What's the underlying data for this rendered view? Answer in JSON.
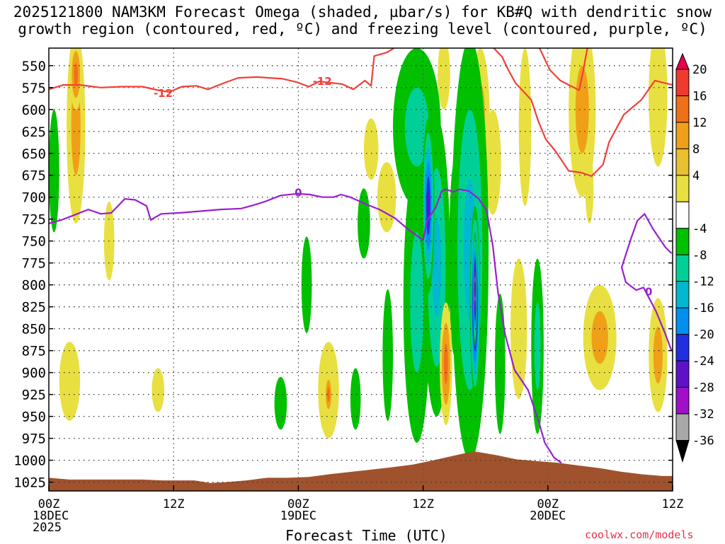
{
  "title": {
    "line1": "2025121800 NAM3KM Forecast Omega (shaded, µbar/s) for KB#Q with dendritic snow",
    "line2": "growth region (contoured, red, ºC) and freezing level (contoured, purple, ºC)"
  },
  "xlabel": "Forecast Time (UTC)",
  "credit": "coolwx.com/models",
  "colors": {
    "temp_contour": "#f04038",
    "freezing_contour": "#9a1fd0",
    "terrain": "#a0522d",
    "grid": "#666666"
  },
  "chart_data": {
    "type": "heatmap",
    "x_unit": "forecast hours from 2025-12-18 00Z",
    "xlim": [
      0,
      60
    ],
    "ylim": [
      1035,
      530
    ],
    "y_ticks": [
      550,
      575,
      600,
      625,
      650,
      675,
      700,
      725,
      750,
      775,
      800,
      825,
      850,
      875,
      900,
      925,
      950,
      975,
      1000,
      1025
    ],
    "x_ticks": [
      {
        "h": 0,
        "labels": [
          "00Z",
          "18DEC",
          "2025"
        ]
      },
      {
        "h": 12,
        "labels": [
          "12Z"
        ]
      },
      {
        "h": 24,
        "labels": [
          "00Z",
          "19DEC"
        ]
      },
      {
        "h": 36,
        "labels": [
          "12Z"
        ]
      },
      {
        "h": 48,
        "labels": [
          "00Z",
          "20DEC"
        ]
      },
      {
        "h": 60,
        "labels": [
          "12Z"
        ]
      }
    ],
    "colorbar": {
      "labels": [
        20,
        16,
        12,
        8,
        4,
        -4,
        -8,
        -12,
        -16,
        -20,
        -24,
        -28,
        -32,
        -36
      ],
      "colors": [
        "#e8004a",
        "#f03a30",
        "#f07018",
        "#f0a018",
        "#e8c030",
        "#e8e040",
        "#ffffff",
        "#00c000",
        "#00d098",
        "#00b8d0",
        "#0090f0",
        "#2030e0",
        "#6010c8",
        "#a010c8",
        "#a8a8a8",
        "#000000"
      ]
    },
    "omega_blobs": [
      {
        "h": 2.6,
        "p": 620,
        "dh": 0.9,
        "dp": 110,
        "v": 8
      },
      {
        "h": 2.6,
        "p": 560,
        "dh": 0.6,
        "dp": 40,
        "v": 12
      },
      {
        "h": 2.0,
        "p": 910,
        "dh": 1.0,
        "dp": 45,
        "v": 6
      },
      {
        "h": 5.8,
        "p": 750,
        "dh": 0.5,
        "dp": 45,
        "v": 5
      },
      {
        "h": 10.5,
        "p": 920,
        "dh": 0.6,
        "dp": 25,
        "v": 5
      },
      {
        "h": 0.5,
        "p": 670,
        "dh": 0.5,
        "dp": 70,
        "v": -7
      },
      {
        "h": 22.3,
        "p": 935,
        "dh": 0.6,
        "dp": 30,
        "v": -6
      },
      {
        "h": 24.8,
        "p": 800,
        "dh": 0.5,
        "dp": 55,
        "v": -6
      },
      {
        "h": 26.9,
        "p": 920,
        "dh": 1.0,
        "dp": 55,
        "v": 7
      },
      {
        "h": 26.9,
        "p": 925,
        "dh": 0.4,
        "dp": 25,
        "v": 14
      },
      {
        "h": 29.5,
        "p": 930,
        "dh": 0.5,
        "dp": 35,
        "v": -6
      },
      {
        "h": 30.3,
        "p": 730,
        "dh": 0.6,
        "dp": 40,
        "v": -6
      },
      {
        "h": 31.0,
        "p": 645,
        "dh": 0.7,
        "dp": 35,
        "v": 6
      },
      {
        "h": 32.6,
        "p": 880,
        "dh": 0.5,
        "dp": 75,
        "v": -7
      },
      {
        "h": 32.5,
        "p": 700,
        "dh": 0.9,
        "dp": 40,
        "v": 6
      },
      {
        "h": 35.4,
        "p": 620,
        "dh": 2.3,
        "dp": 90,
        "v": -10
      },
      {
        "h": 35.4,
        "p": 820,
        "dh": 1.3,
        "dp": 160,
        "v": -8
      },
      {
        "h": 36.5,
        "p": 710,
        "dh": 0.6,
        "dp": 100,
        "v": -26
      },
      {
        "h": 37.3,
        "p": 780,
        "dh": 1.3,
        "dp": 170,
        "v": -12
      },
      {
        "h": 38.2,
        "p": 890,
        "dh": 0.6,
        "dp": 70,
        "v": 14
      },
      {
        "h": 38.0,
        "p": 560,
        "dh": 0.6,
        "dp": 40,
        "v": 6
      },
      {
        "h": 39.0,
        "p": 770,
        "dh": 0.5,
        "dp": 110,
        "v": -8
      },
      {
        "h": 40.5,
        "p": 760,
        "dh": 1.8,
        "dp": 240,
        "v": -14
      },
      {
        "h": 41.0,
        "p": 820,
        "dh": 0.5,
        "dp": 110,
        "v": -32
      },
      {
        "h": 41.0,
        "p": 805,
        "dh": 0.2,
        "dp": 65,
        "v": -40
      },
      {
        "h": 41.5,
        "p": 610,
        "dh": 0.9,
        "dp": 80,
        "v": 9
      },
      {
        "h": 42.7,
        "p": 660,
        "dh": 0.8,
        "dp": 60,
        "v": 6
      },
      {
        "h": 43.4,
        "p": 890,
        "dh": 0.5,
        "dp": 80,
        "v": -6
      },
      {
        "h": 45.8,
        "p": 620,
        "dh": 0.6,
        "dp": 90,
        "v": 7
      },
      {
        "h": 45.2,
        "p": 850,
        "dh": 0.8,
        "dp": 80,
        "v": 6
      },
      {
        "h": 47.0,
        "p": 870,
        "dh": 0.6,
        "dp": 100,
        "v": -10
      },
      {
        "h": 51.3,
        "p": 600,
        "dh": 1.3,
        "dp": 100,
        "v": 9
      },
      {
        "h": 52.0,
        "p": 690,
        "dh": 0.4,
        "dp": 40,
        "v": 5
      },
      {
        "h": 53.0,
        "p": 860,
        "dh": 1.6,
        "dp": 60,
        "v": 10
      },
      {
        "h": 58.6,
        "p": 880,
        "dh": 0.9,
        "dp": 65,
        "v": 8
      },
      {
        "h": 58.6,
        "p": 585,
        "dh": 0.9,
        "dp": 80,
        "v": 6
      }
    ],
    "temp_minus12": {
      "label": "-12",
      "labels_at": [
        [
          11.0,
          581
        ],
        [
          26.3,
          567
        ]
      ],
      "segments": [
        [
          [
            0,
            577
          ],
          [
            1.4,
            572
          ],
          [
            3,
            572
          ],
          [
            5,
            575
          ],
          [
            7,
            574
          ],
          [
            9,
            574
          ],
          [
            10.5,
            578
          ],
          [
            11.6,
            580
          ],
          [
            12.8,
            574
          ],
          [
            14.2,
            573
          ],
          [
            15.3,
            577
          ],
          [
            16.8,
            570
          ],
          [
            18.2,
            564
          ],
          [
            20.0,
            563
          ],
          [
            22.5,
            565
          ],
          [
            23.9,
            569
          ],
          [
            25.0,
            574
          ],
          [
            26.0,
            568
          ],
          [
            28.2,
            571
          ],
          [
            29.3,
            577
          ],
          [
            30.4,
            567
          ],
          [
            31.0,
            573
          ],
          [
            31.3,
            539
          ],
          [
            32.5,
            535
          ],
          [
            33.2,
            530
          ]
        ],
        [
          [
            42.8,
            530
          ],
          [
            43.6,
            540
          ],
          [
            44.2,
            555
          ],
          [
            44.9,
            570
          ],
          [
            46.4,
            589
          ],
          [
            47.1,
            614
          ],
          [
            47.8,
            634
          ],
          [
            48.7,
            647
          ],
          [
            50.0,
            670
          ],
          [
            51.2,
            672
          ],
          [
            52.2,
            676
          ],
          [
            53.3,
            663
          ],
          [
            53.9,
            637
          ],
          [
            55.3,
            606
          ],
          [
            57.0,
            589
          ],
          [
            58.3,
            567
          ],
          [
            60,
            572
          ]
        ],
        [
          [
            47.2,
            530
          ],
          [
            48.2,
            555
          ],
          [
            49.2,
            567
          ],
          [
            51.0,
            578
          ],
          [
            51.4,
            556
          ],
          [
            51.8,
            530
          ]
        ]
      ]
    },
    "freezing_0": {
      "label": "0",
      "labels_at": [
        [
          24.0,
          694
        ],
        [
          57.7,
          807
        ]
      ],
      "segments": [
        [
          [
            0,
            730
          ],
          [
            1.2,
            726
          ],
          [
            2.3,
            721
          ],
          [
            3.8,
            714
          ],
          [
            5.0,
            719
          ],
          [
            6.0,
            718
          ],
          [
            7.3,
            702
          ],
          [
            8.3,
            703
          ],
          [
            9.4,
            710
          ],
          [
            9.8,
            726
          ],
          [
            10.8,
            719
          ],
          [
            12.5,
            718
          ],
          [
            14.5,
            716
          ],
          [
            16.5,
            714
          ],
          [
            18.5,
            713
          ],
          [
            19.7,
            709
          ],
          [
            20.8,
            705
          ],
          [
            22.3,
            698
          ],
          [
            23.9,
            696
          ],
          [
            25.1,
            697
          ],
          [
            26.3,
            700
          ],
          [
            27.4,
            700
          ],
          [
            28.1,
            697
          ],
          [
            29.0,
            700
          ],
          [
            30.5,
            708
          ],
          [
            31.8,
            714
          ],
          [
            33.3,
            724
          ],
          [
            34.7,
            738
          ],
          [
            36.0,
            749
          ],
          [
            36.4,
            726
          ],
          [
            37.2,
            712
          ],
          [
            37.8,
            693
          ],
          [
            38.2,
            691
          ],
          [
            38.9,
            694
          ],
          [
            39.5,
            691
          ],
          [
            40.4,
            693
          ],
          [
            41.3,
            701
          ],
          [
            42.1,
            715
          ],
          [
            42.7,
            755
          ],
          [
            43.2,
            808
          ],
          [
            43.9,
            857
          ],
          [
            44.8,
            897
          ],
          [
            46.1,
            920
          ],
          [
            47.1,
            955
          ],
          [
            47.7,
            980
          ],
          [
            48.6,
            997
          ],
          [
            49.3,
            1003
          ]
        ],
        [
          [
            59.9,
            764
          ],
          [
            59.3,
            757
          ],
          [
            58.1,
            736
          ],
          [
            57.3,
            719
          ],
          [
            56.6,
            727
          ],
          [
            56.0,
            747
          ],
          [
            55.1,
            780
          ],
          [
            55.5,
            797
          ],
          [
            56.5,
            806
          ],
          [
            57.2,
            803
          ],
          [
            58.4,
            830
          ],
          [
            59.3,
            856
          ],
          [
            59.9,
            875
          ]
        ]
      ]
    },
    "terrain": [
      [
        0,
        1020
      ],
      [
        2,
        1022
      ],
      [
        4,
        1022
      ],
      [
        9,
        1022
      ],
      [
        11,
        1023
      ],
      [
        14,
        1023
      ],
      [
        15.5,
        1026
      ],
      [
        17,
        1025
      ],
      [
        19,
        1023
      ],
      [
        21,
        1020
      ],
      [
        23,
        1020
      ],
      [
        25,
        1019
      ],
      [
        27,
        1016
      ],
      [
        30,
        1012
      ],
      [
        33,
        1008
      ],
      [
        35,
        1005
      ],
      [
        37,
        1000
      ],
      [
        40,
        992
      ],
      [
        41,
        990
      ],
      [
        43,
        994
      ],
      [
        45,
        999
      ],
      [
        47,
        1001
      ],
      [
        49,
        1003
      ],
      [
        51,
        1006
      ],
      [
        53,
        1009
      ],
      [
        55,
        1013
      ],
      [
        57,
        1016
      ],
      [
        59,
        1018
      ],
      [
        60,
        1018
      ]
    ]
  }
}
